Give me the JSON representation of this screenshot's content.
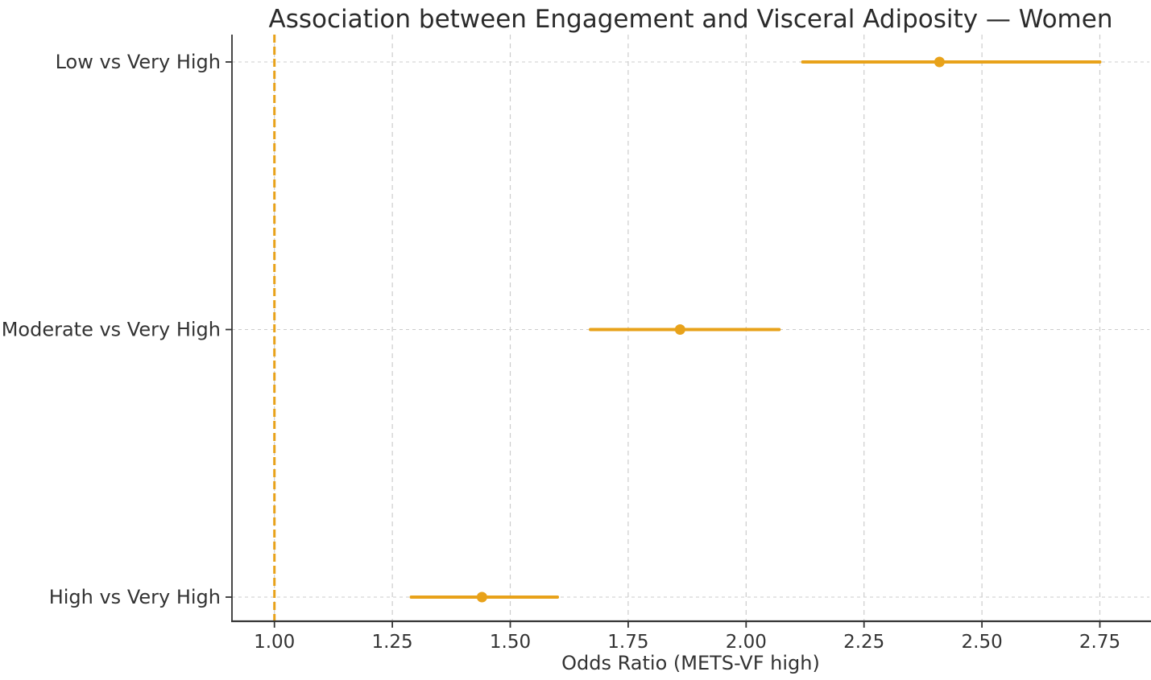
{
  "figure": {
    "title": "Association between Engagement and Visceral Adiposity — Women",
    "xlabel": "Odds Ratio (METS-VF high)"
  },
  "chart_data": {
    "type": "scatter",
    "subtype": "forest-plot-horizontal-errorbars",
    "title": "Association between Engagement and Visceral Adiposity — Women",
    "xlabel": "Odds Ratio (METS-VF high)",
    "ylabel": "",
    "categories": [
      "Low vs Very High",
      "Moderate vs Very High",
      "High vs Very High"
    ],
    "rows": [
      {
        "label": "Low vs Very High",
        "or": 2.41,
        "ci_low": 2.12,
        "ci_high": 2.75
      },
      {
        "label": "Moderate vs Very High",
        "or": 1.86,
        "ci_low": 1.67,
        "ci_high": 2.07
      },
      {
        "label": "High vs Very High",
        "or": 1.44,
        "ci_low": 1.29,
        "ci_high": 1.6
      }
    ],
    "xticks": [
      1.0,
      1.25,
      1.5,
      1.75,
      2.0,
      2.25,
      2.5,
      2.75
    ],
    "xtick_labels": [
      "1.00",
      "1.25",
      "1.50",
      "1.75",
      "2.00",
      "2.25",
      "2.50",
      "2.75"
    ],
    "xlim": [
      0.91,
      2.855
    ],
    "reference_line_x": 1.0,
    "grid": true,
    "legend": null,
    "colors": {
      "accent": "#E8A21A",
      "grid": "#cccccc",
      "spine": "#333333",
      "text": "#333333",
      "title_text": "#2b2b2b",
      "background": "#ffffff"
    }
  }
}
